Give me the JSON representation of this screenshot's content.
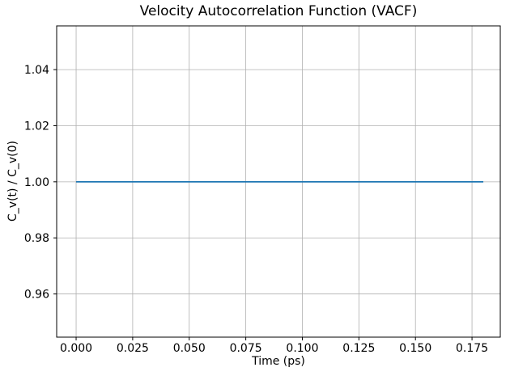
{
  "chart_data": {
    "type": "line",
    "title": "Velocity Autocorrelation Function (VACF)",
    "xlabel": "Time (ps)",
    "ylabel": "C_v(t) / C_v(0)",
    "x": [
      0.0,
      0.02,
      0.04,
      0.06,
      0.08,
      0.1,
      0.12,
      0.14,
      0.16,
      0.18
    ],
    "series": [
      {
        "name": "VACF",
        "values": [
          1.0,
          1.0,
          1.0,
          1.0,
          1.0,
          1.0,
          1.0,
          1.0,
          1.0,
          1.0
        ]
      }
    ],
    "xlim": [
      -0.0086,
      0.1875
    ],
    "ylim": [
      0.9446,
      1.0556
    ],
    "xticks": {
      "values": [
        0.0,
        0.025,
        0.05,
        0.075,
        0.1,
        0.125,
        0.15,
        0.175
      ],
      "labels": [
        "0.000",
        "0.025",
        "0.050",
        "0.075",
        "0.100",
        "0.125",
        "0.150",
        "0.175"
      ]
    },
    "yticks": {
      "values": [
        0.96,
        0.98,
        1.0,
        1.02,
        1.04
      ],
      "labels": [
        "0.96",
        "0.98",
        "1.00",
        "1.02",
        "1.04"
      ]
    },
    "grid": true,
    "legend": null,
    "colors": {
      "line": "#1f77b4",
      "grid": "#b0b0b0",
      "spine": "#000000",
      "text": "#000000",
      "background": "#ffffff"
    }
  }
}
